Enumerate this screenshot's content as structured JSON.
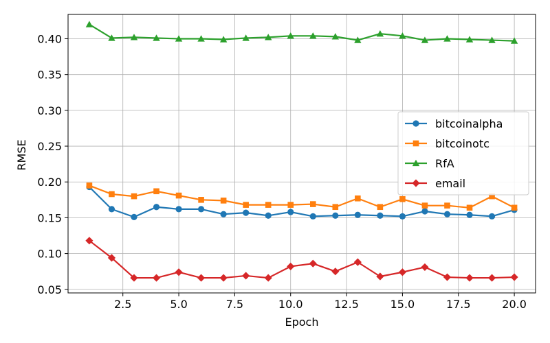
{
  "chart_data": {
    "type": "line",
    "title": "",
    "xlabel": "Epoch",
    "ylabel": "RMSE",
    "xlim": [
      0.05,
      20.95
    ],
    "ylim": [
      0.045,
      0.434
    ],
    "grid": true,
    "legend_placement": "center-right",
    "x": [
      1,
      2,
      3,
      4,
      5,
      6,
      7,
      8,
      9,
      10,
      11,
      12,
      13,
      14,
      15,
      16,
      17,
      18,
      19,
      20
    ],
    "x_ticks": [
      2.5,
      5.0,
      7.5,
      10.0,
      12.5,
      15.0,
      17.5,
      20.0
    ],
    "x_tick_labels": [
      "2.5",
      "5.0",
      "7.5",
      "10.0",
      "12.5",
      "15.0",
      "17.5",
      "20.0"
    ],
    "y_ticks": [
      0.05,
      0.1,
      0.15,
      0.2,
      0.25,
      0.3,
      0.35,
      0.4
    ],
    "y_tick_labels": [
      "0.05",
      "0.10",
      "0.15",
      "0.20",
      "0.25",
      "0.30",
      "0.35",
      "0.40"
    ],
    "series": [
      {
        "name": "bitcoinalpha",
        "color": "#1f77b4",
        "marker": "circle",
        "values": [
          0.193,
          0.162,
          0.151,
          0.165,
          0.162,
          0.162,
          0.155,
          0.157,
          0.153,
          0.158,
          0.152,
          0.153,
          0.154,
          0.153,
          0.152,
          0.159,
          0.155,
          0.154,
          0.152,
          0.161
        ]
      },
      {
        "name": "bitcoinotc",
        "color": "#ff7f0e",
        "marker": "square",
        "values": [
          0.195,
          0.183,
          0.18,
          0.187,
          0.181,
          0.175,
          0.174,
          0.168,
          0.168,
          0.168,
          0.169,
          0.165,
          0.177,
          0.165,
          0.176,
          0.167,
          0.167,
          0.164,
          0.18,
          0.164
        ]
      },
      {
        "name": "RfA",
        "color": "#2ca02c",
        "marker": "triangle",
        "values": [
          0.42,
          0.401,
          0.402,
          0.401,
          0.4,
          0.4,
          0.399,
          0.401,
          0.402,
          0.404,
          0.404,
          0.403,
          0.398,
          0.407,
          0.404,
          0.398,
          0.4,
          0.399,
          0.398,
          0.397
        ]
      },
      {
        "name": "email",
        "color": "#d62728",
        "marker": "diamond",
        "values": [
          0.118,
          0.094,
          0.066,
          0.066,
          0.074,
          0.066,
          0.066,
          0.069,
          0.066,
          0.082,
          0.086,
          0.075,
          0.088,
          0.068,
          0.074,
          0.081,
          0.067,
          0.066,
          0.066,
          0.067
        ]
      }
    ]
  }
}
